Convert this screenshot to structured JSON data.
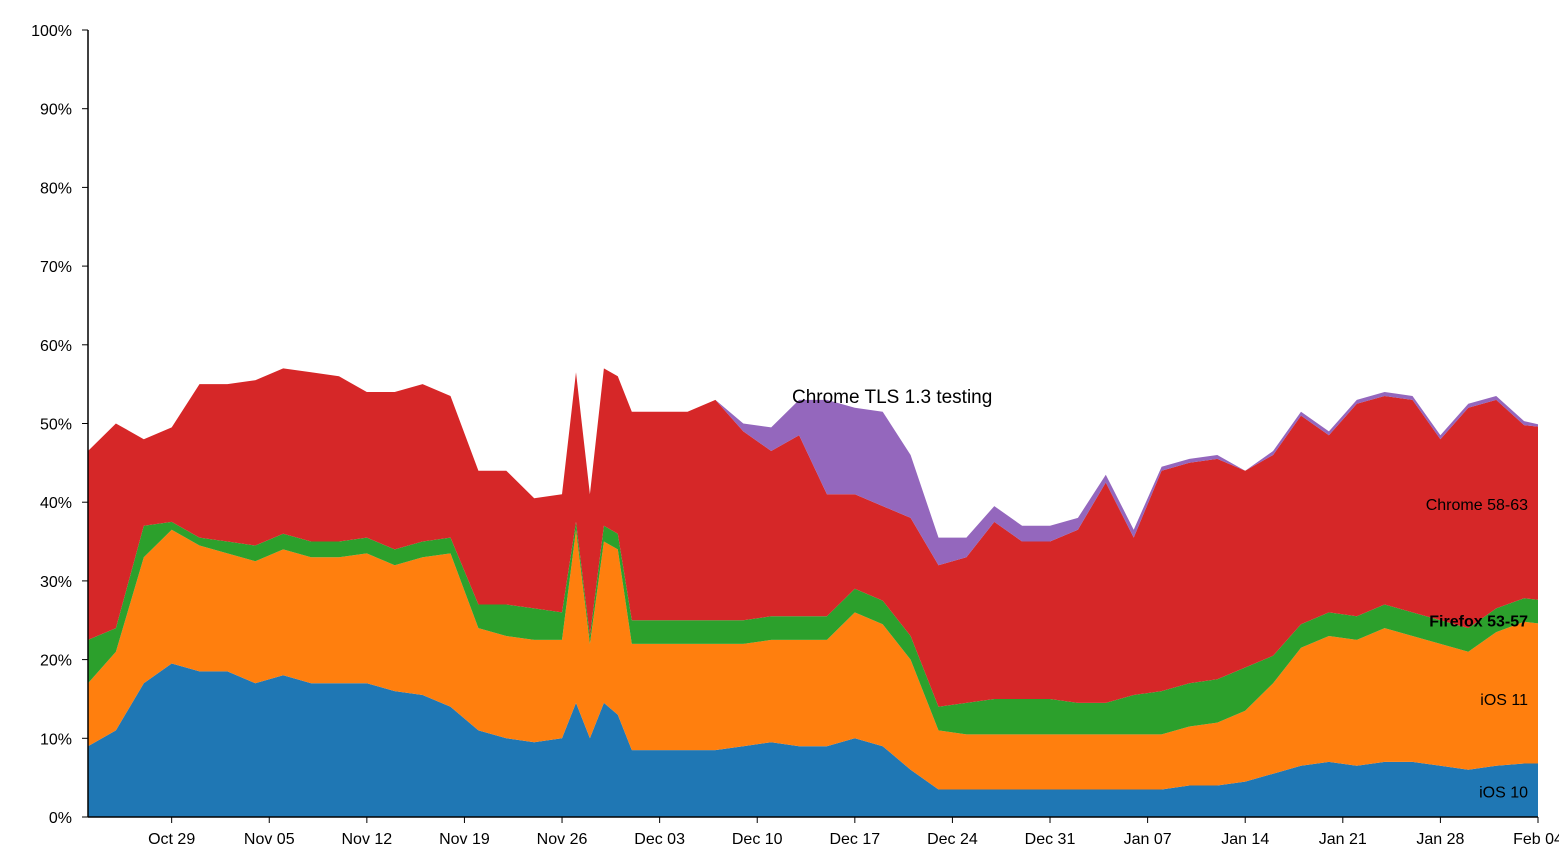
{
  "chart_data": {
    "type": "area",
    "stacked": true,
    "x_range": [
      "2017-10-23",
      "2018-02-04"
    ],
    "ylim": [
      0,
      100
    ],
    "y_ticks": [
      0,
      10,
      20,
      30,
      40,
      50,
      60,
      70,
      80,
      90,
      100
    ],
    "y_tick_labels": [
      "0%",
      "10%",
      "20%",
      "30%",
      "40%",
      "50%",
      "60%",
      "70%",
      "80%",
      "90%",
      "100%"
    ],
    "x_ticks": [
      {
        "date": "2017-10-29",
        "label": "Oct 29"
      },
      {
        "date": "2017-11-05",
        "label": "Nov 05"
      },
      {
        "date": "2017-11-12",
        "label": "Nov 12"
      },
      {
        "date": "2017-11-19",
        "label": "Nov 19"
      },
      {
        "date": "2017-11-26",
        "label": "Nov 26"
      },
      {
        "date": "2017-12-03",
        "label": "Dec 03"
      },
      {
        "date": "2017-12-10",
        "label": "Dec 10"
      },
      {
        "date": "2017-12-17",
        "label": "Dec 17"
      },
      {
        "date": "2017-12-24",
        "label": "Dec 24"
      },
      {
        "date": "2017-12-31",
        "label": "Dec 31"
      },
      {
        "date": "2018-01-07",
        "label": "Jan 07"
      },
      {
        "date": "2018-01-14",
        "label": "Jan 14"
      },
      {
        "date": "2018-01-21",
        "label": "Jan 21"
      },
      {
        "date": "2018-01-28",
        "label": "Jan 28"
      },
      {
        "date": "2018-02-04",
        "label": "Feb 04"
      }
    ],
    "x": [
      "2017-10-23",
      "2017-10-25",
      "2017-10-27",
      "2017-10-29",
      "2017-10-31",
      "2017-11-02",
      "2017-11-04",
      "2017-11-06",
      "2017-11-08",
      "2017-11-10",
      "2017-11-12",
      "2017-11-14",
      "2017-11-16",
      "2017-11-18",
      "2017-11-20",
      "2017-11-22",
      "2017-11-24",
      "2017-11-26",
      "2017-11-27",
      "2017-11-28",
      "2017-11-29",
      "2017-11-30",
      "2017-12-01",
      "2017-12-03",
      "2017-12-05",
      "2017-12-07",
      "2017-12-09",
      "2017-12-11",
      "2017-12-13",
      "2017-12-15",
      "2017-12-17",
      "2017-12-19",
      "2017-12-21",
      "2017-12-23",
      "2017-12-25",
      "2017-12-27",
      "2017-12-29",
      "2017-12-31",
      "2018-01-02",
      "2018-01-04",
      "2018-01-06",
      "2018-01-08",
      "2018-01-10",
      "2018-01-12",
      "2018-01-14",
      "2018-01-16",
      "2018-01-18",
      "2018-01-20",
      "2018-01-22",
      "2018-01-24",
      "2018-01-26",
      "2018-01-28",
      "2018-01-30",
      "2018-02-01",
      "2018-02-03",
      "2018-02-04"
    ],
    "series": [
      {
        "name": "iOS 10",
        "color": "#1f77b4",
        "values": [
          9,
          11,
          17,
          19.5,
          18.5,
          18.5,
          17,
          18,
          17,
          17,
          17,
          16,
          15.5,
          14,
          11,
          10,
          9.5,
          10,
          14.5,
          10,
          14.5,
          13,
          8.5,
          8.5,
          8.5,
          8.5,
          9,
          9.5,
          9,
          9,
          10,
          9,
          6,
          3.5,
          3.5,
          3.5,
          3.5,
          3.5,
          3.5,
          3.5,
          3.5,
          3.5,
          4,
          4,
          4.5,
          5.5,
          6.5,
          7,
          6.5,
          7,
          7,
          6.5,
          6,
          6.5,
          6.8,
          6.8
        ]
      },
      {
        "name": "iOS 11",
        "color": "#ff7f0e",
        "values": [
          8,
          10,
          16,
          17,
          16,
          15,
          15.5,
          16,
          16,
          16,
          16.5,
          16,
          17.5,
          19.5,
          13,
          13,
          13,
          12.5,
          22,
          12,
          20.5,
          21,
          13.5,
          13.5,
          13.5,
          13.5,
          13,
          13,
          13.5,
          13.5,
          16,
          15.5,
          14,
          7.5,
          7,
          7,
          7,
          7,
          7,
          7,
          7,
          7,
          7.5,
          8,
          9,
          11.5,
          15,
          16,
          16,
          17,
          16,
          15.5,
          15,
          17,
          18,
          17.8
        ]
      },
      {
        "name": "Firefox 53-57",
        "color": "#2ca02c",
        "values": [
          5.5,
          3,
          4,
          1,
          1,
          1.5,
          2,
          2,
          2,
          2,
          2,
          2,
          2,
          2,
          3,
          4,
          4,
          3.5,
          1,
          1,
          2,
          2,
          3,
          3,
          3,
          3,
          3,
          3,
          3,
          3,
          3,
          3,
          3,
          3,
          4,
          4.5,
          4.5,
          4.5,
          4,
          4,
          5,
          5.5,
          5.5,
          5.5,
          5.5,
          3.5,
          3,
          3,
          3,
          3,
          3,
          3,
          3,
          3,
          3,
          3
        ]
      },
      {
        "name": "Chrome 58-63",
        "color": "#d62728",
        "values": [
          24,
          26,
          11,
          12,
          19.5,
          20,
          21,
          21,
          21.5,
          21,
          18.5,
          20,
          20,
          18,
          17,
          17,
          14,
          15,
          19,
          18,
          20,
          20,
          26.5,
          26.5,
          26.5,
          28,
          24,
          21,
          23,
          15.5,
          12,
          12,
          15,
          18,
          18.5,
          22.5,
          20,
          20,
          22,
          28,
          20,
          28,
          28,
          28,
          25,
          25.5,
          26.5,
          22.5,
          27,
          26.5,
          27,
          23,
          28,
          26.5,
          22,
          22
        ]
      },
      {
        "name": "Chrome TLS 1.3 testing",
        "color": "#9467bd",
        "values": [
          0,
          0,
          0,
          0,
          0,
          0,
          0,
          0,
          0,
          0,
          0,
          0,
          0,
          0,
          0,
          0,
          0,
          0,
          0,
          0,
          0,
          0,
          0,
          0,
          0,
          0,
          1,
          3,
          4.5,
          12,
          11,
          12,
          8,
          3.5,
          2.5,
          2,
          2,
          2,
          1.5,
          1,
          1,
          0.5,
          0.5,
          0.5,
          0,
          0.5,
          0.5,
          0.5,
          0.5,
          0.5,
          0.5,
          0.5,
          0.5,
          0.5,
          0.5,
          0.3
        ]
      }
    ],
    "series_labels": [
      {
        "series": "iOS 10",
        "text": "iOS 10"
      },
      {
        "series": "iOS 11",
        "text": "iOS 11"
      },
      {
        "series": "Firefox 53-57",
        "text": "Firefox 53-57"
      },
      {
        "series": "Chrome 58-63",
        "text": "Chrome 58-63"
      }
    ],
    "annotations": [
      {
        "text": "Chrome TLS 1.3 testing"
      }
    ],
    "grid": false
  }
}
